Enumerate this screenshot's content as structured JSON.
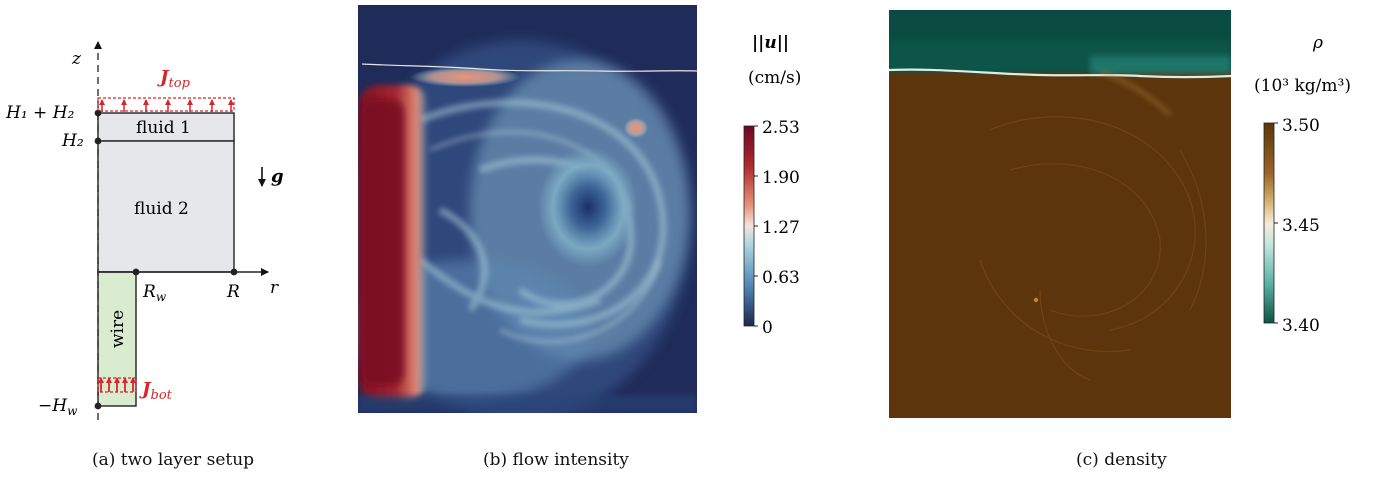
{
  "panel_a": {
    "caption": "(a) two layer setup",
    "axis_z": "z",
    "axis_r": "r",
    "label_h1h2": "H₁ + H₂",
    "label_h2": "H₂",
    "label_hw": "−H",
    "label_hw_sub": "w",
    "label_rw": "R",
    "label_rw_sub": "w",
    "label_R": "R",
    "fluid1": "fluid 1",
    "fluid2": "fluid 2",
    "wire": "wire",
    "j_top": "J",
    "j_top_sub": "top",
    "j_bot": "J",
    "j_bot_sub": "bot",
    "gravity": "g",
    "colors": {
      "fluid": "#e6e7ea",
      "wire": "#d9ecd0",
      "current": "#d7262b"
    }
  },
  "panel_b": {
    "caption": "(b) flow intensity",
    "colorbar_title": "||u||",
    "colorbar_unit": "(cm/s)",
    "ticks": [
      "2.53",
      "1.90",
      "1.27",
      "0.63",
      "0"
    ],
    "colormap": [
      "#6a0826",
      "#b02a2e",
      "#e8957c",
      "#f2e6dc",
      "#a9d3de",
      "#4f86b5",
      "#243c78",
      "#1c2750"
    ]
  },
  "panel_c": {
    "caption": "(c) density",
    "colorbar_symbol": "ρ",
    "colorbar_unit": "(10³ kg/m³)",
    "ticks": [
      "3.50",
      "3.45",
      "3.40"
    ],
    "colormap": [
      "#5c350c",
      "#9a6426",
      "#d7b673",
      "#f4ecd8",
      "#c6e7e0",
      "#5bb3a6",
      "#0a5447"
    ]
  }
}
